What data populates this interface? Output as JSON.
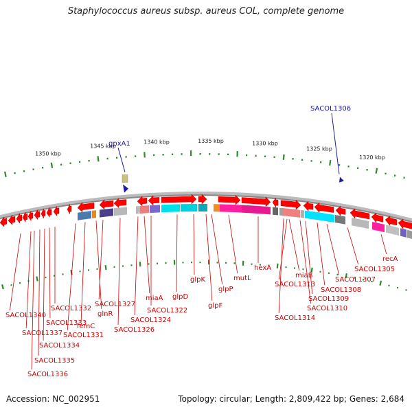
{
  "title": "Staphylococcus aureus subsp. aureus COL, complete genome",
  "scale_labels": [
    "1350 kbp",
    "1345 kbp",
    "1340 kbp",
    "1335 kbp",
    "1330 kbp",
    "1325 kbp",
    "1320 kbp"
  ],
  "callouts": [
    "gpxA1",
    "SACOL1306"
  ],
  "gene_labels": [
    "SACOL1340",
    "SACOL1337",
    "SACOL1336",
    "SACOL1335",
    "SACOL1334",
    "SACOL1333",
    "SACOL1332",
    "SACOL1331",
    "femC",
    "glnR",
    "SACOL1327",
    "SACOL1326",
    "SACOL1324",
    "miaA",
    "SACOL1322",
    "glpD",
    "glpK",
    "glpF",
    "glpP",
    "mutL",
    "hexA",
    "SACOL1314",
    "SACOL1313",
    "miaB",
    "SACOL1310",
    "SACOL1309",
    "SACOL1308",
    "SACOL1307",
    "SACOL1305",
    "recA"
  ],
  "footer": {
    "accession": "Accession: NC_002951",
    "summary": "Topology: circular; Length: 2,809,422 bp; Genes: 2,684"
  },
  "colors": {
    "gene": "#ff0000",
    "backbone": "#888888",
    "tick": "#2a8a2a",
    "label": "#cc0000",
    "callout": "#1a1aa8"
  }
}
